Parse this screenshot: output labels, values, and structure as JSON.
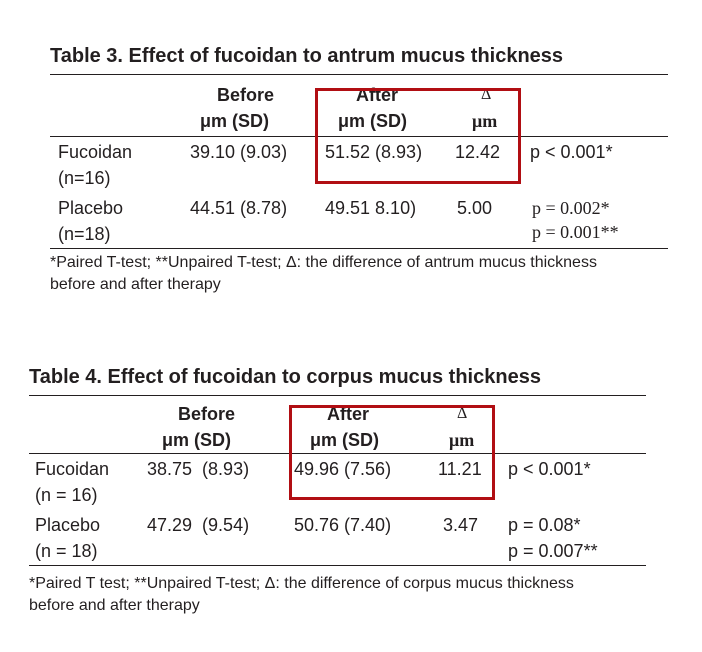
{
  "table3": {
    "title": "Table 3. Effect of fucoidan to antrum mucus thickness",
    "headers": {
      "before_line1": "Before",
      "before_line2": "μm (SD)",
      "after_line1": "After",
      "after_line2": "μm (SD)",
      "delta_line1": "Δ",
      "delta_line2": "μm"
    },
    "rows": [
      {
        "name_line1": "Fucoidan",
        "name_line2": "(n=16)",
        "before": "39.10 (9.03)",
        "after": "51.52 (8.93)",
        "delta": "12.42",
        "p_line1": "p < 0.001*",
        "p_line2": ""
      },
      {
        "name_line1": "Placebo",
        "name_line2": "(n=18)",
        "before": "44.51 (8.78)",
        "after": "49.51 8.10)",
        "delta": "5.00",
        "p_line1": "p = 0.002*",
        "p_line2": "p = 0.001**"
      }
    ],
    "footnote_line1": "*Paired T-test; **Unpaired T-test; Δ: the difference of antrum mucus thickness",
    "footnote_line2": "before and after therapy"
  },
  "table4": {
    "title": "Table 4. Effect of fucoidan to corpus mucus thickness",
    "headers": {
      "before_line1": "Before",
      "before_line2": "μm (SD)",
      "after_line1": "After",
      "after_line2": "μm (SD)",
      "delta_line1": "Δ",
      "delta_line2": "μm"
    },
    "rows": [
      {
        "name_line1": "Fucoidan",
        "name_line2": "(n = 16)",
        "before": "38.75  (8.93)",
        "after": "49.96 (7.56)",
        "delta": "11.21",
        "p_line1": "p < 0.001*",
        "p_line2": ""
      },
      {
        "name_line1": "Placebo",
        "name_line2": "(n = 18)",
        "before": "47.29  (9.54)",
        "after": "50.76 (7.40)",
        "delta": "3.47",
        "p_line1": "p = 0.08*",
        "p_line2": "p = 0.007**"
      }
    ],
    "footnote_line1": "*Paired T test; **Unpaired T-test; Δ: the difference of corpus mucus thickness",
    "footnote_line2": "before and after therapy"
  },
  "colors": {
    "highlight_box": "#b10e13",
    "text": "#231f20"
  }
}
